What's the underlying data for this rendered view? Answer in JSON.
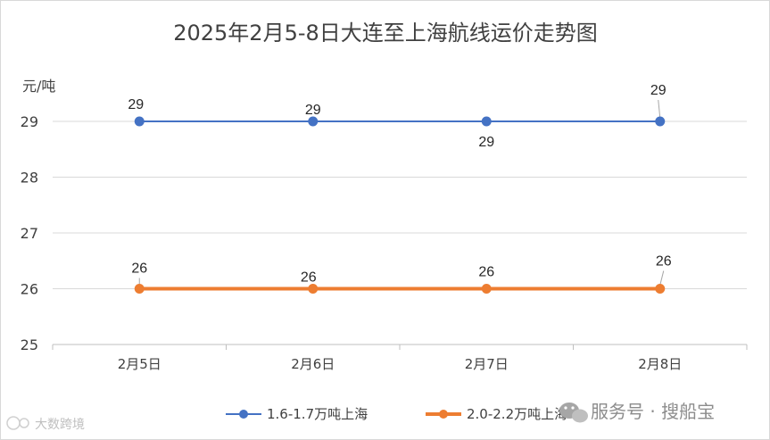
{
  "chart_data": {
    "type": "line",
    "title": "2025年2月5-8日大连至上海航线运价走势图",
    "ylabel": "元/吨",
    "xlabel": "",
    "categories": [
      "2月5日",
      "2月6日",
      "2月7日",
      "2月8日"
    ],
    "ylim": [
      25,
      29
    ],
    "yticks": [
      25,
      26,
      27,
      28,
      29
    ],
    "grid": true,
    "legend": "bottom",
    "series": [
      {
        "name": "1.6-1.7万吨上海",
        "values": [
          29,
          29,
          29,
          29
        ],
        "color": "#4472c4",
        "labels": [
          "29",
          "29",
          "29",
          "29"
        ]
      },
      {
        "name": "2.0-2.2万吨上海",
        "values": [
          26,
          26,
          26,
          26
        ],
        "color": "#ed7d31",
        "labels": [
          "26",
          "26",
          "26",
          "26"
        ]
      }
    ]
  },
  "watermark": {
    "brand": "服务号 · 搜船宝",
    "small": "大数跨境",
    "icon": "wechat-icon"
  }
}
